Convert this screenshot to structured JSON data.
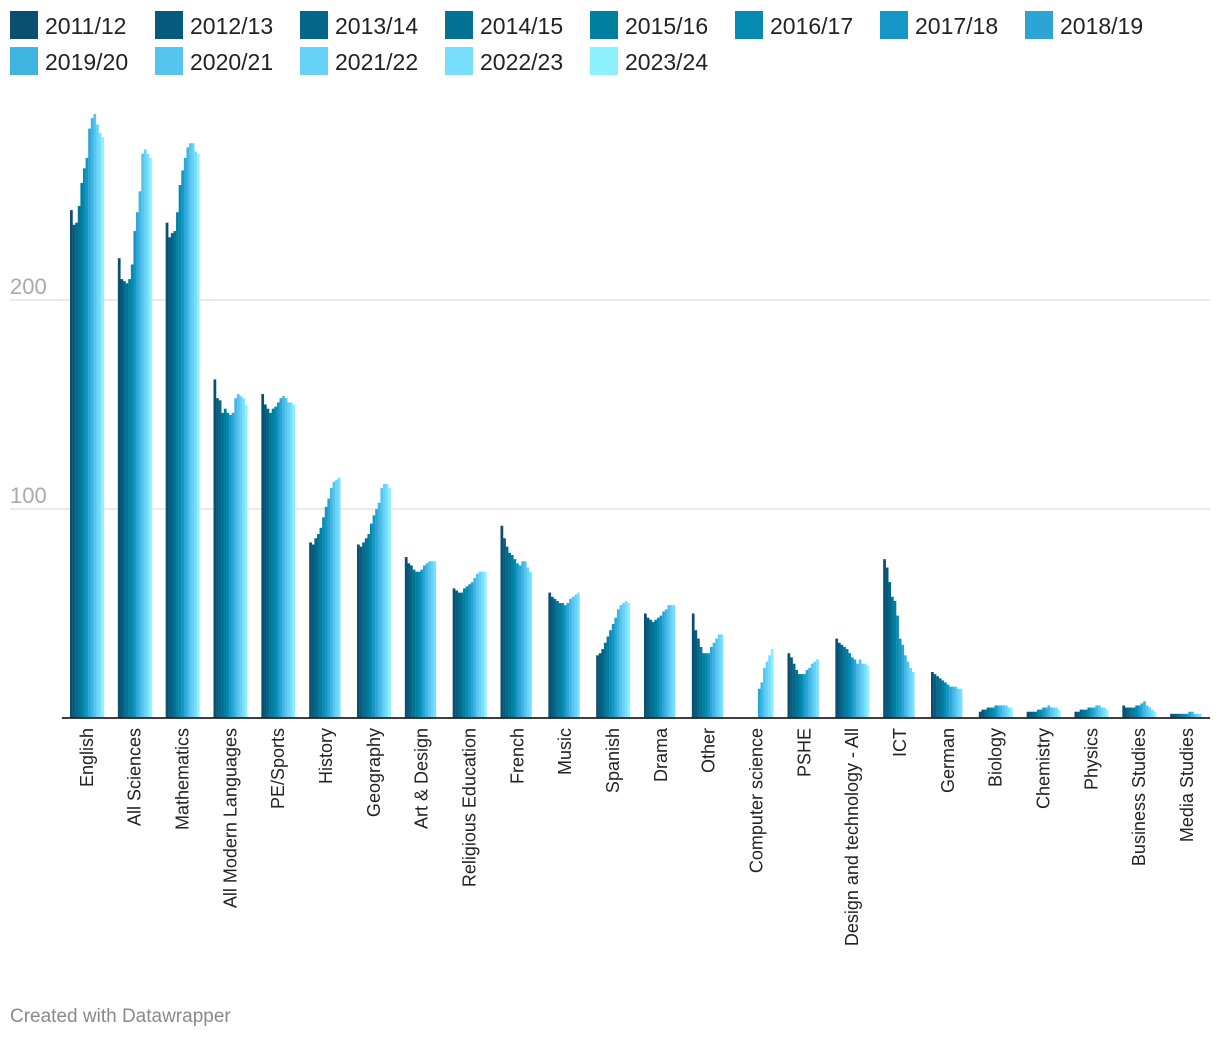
{
  "chart_data": {
    "type": "bar",
    "title": "",
    "xlabel": "",
    "ylabel": "",
    "ylim": [
      0,
      290
    ],
    "yticks": [
      100,
      200
    ],
    "grid": true,
    "legend_position": "top",
    "categories": [
      "English",
      "All Sciences",
      "Mathematics",
      "All Modern Languages",
      "PE/Sports",
      "History",
      "Geography",
      "Art & Design",
      "Religious Education",
      "French",
      "Music",
      "Spanish",
      "Drama",
      "Other",
      "Computer science",
      "PSHE",
      "Design and technology - All",
      "ICT",
      "German",
      "Biology",
      "Chemistry",
      "Physics",
      "Business Studies",
      "Media Studies"
    ],
    "series": [
      {
        "name": "2011/12",
        "color": "#0a4f70",
        "values": [
          243,
          220,
          237,
          162,
          155,
          84,
          83,
          77,
          62,
          92,
          60,
          30,
          50,
          50,
          null,
          31,
          38,
          76,
          22,
          3,
          3,
          3,
          6,
          2
        ]
      },
      {
        "name": "2012/13",
        "color": "#065a7e",
        "values": [
          236,
          210,
          230,
          153,
          150,
          83,
          82,
          74,
          61,
          86,
          58,
          31,
          48,
          42,
          null,
          29,
          36,
          72,
          21,
          4,
          3,
          3,
          5,
          2
        ]
      },
      {
        "name": "2013/14",
        "color": "#046688",
        "values": [
          237,
          209,
          232,
          152,
          148,
          86,
          84,
          73,
          60,
          82,
          57,
          33,
          47,
          38,
          null,
          26,
          35,
          65,
          20,
          4,
          3,
          4,
          5,
          2
        ]
      },
      {
        "name": "2014/15",
        "color": "#037293",
        "values": [
          245,
          208,
          233,
          146,
          146,
          88,
          86,
          71,
          60,
          79,
          56,
          36,
          46,
          34,
          null,
          23,
          34,
          58,
          19,
          5,
          3,
          4,
          5,
          2
        ]
      },
      {
        "name": "2015/16",
        "color": "#027f9e",
        "values": [
          256,
          210,
          242,
          148,
          148,
          91,
          88,
          70,
          62,
          78,
          55,
          39,
          47,
          31,
          null,
          21,
          33,
          56,
          18,
          5,
          4,
          4,
          5,
          2
        ]
      },
      {
        "name": "2016/17",
        "color": "#058ab1",
        "values": [
          263,
          217,
          255,
          146,
          149,
          96,
          93,
          70,
          63,
          76,
          55,
          42,
          48,
          31,
          null,
          21,
          31,
          49,
          17,
          5,
          4,
          5,
          6,
          2
        ]
      },
      {
        "name": "2017/18",
        "color": "#1497c4",
        "values": [
          268,
          233,
          262,
          145,
          151,
          101,
          97,
          71,
          64,
          74,
          54,
          45,
          49,
          31,
          null,
          21,
          29,
          38,
          16,
          6,
          5,
          5,
          6,
          2
        ]
      },
      {
        "name": "2018/19",
        "color": "#2ca5d4",
        "values": [
          282,
          242,
          268,
          146,
          153,
          105,
          100,
          73,
          65,
          73,
          55,
          48,
          51,
          34,
          14,
          23,
          28,
          35,
          15,
          6,
          5,
          5,
          7,
          3
        ]
      },
      {
        "name": "2019/20",
        "color": "#41b5e2",
        "values": [
          287,
          252,
          273,
          153,
          154,
          110,
          103,
          74,
          67,
          75,
          57,
          52,
          52,
          36,
          17,
          24,
          26,
          30,
          15,
          6,
          6,
          6,
          8,
          3
        ]
      },
      {
        "name": "2020/21",
        "color": "#55c4ee",
        "values": [
          289,
          270,
          275,
          155,
          153,
          113,
          110,
          75,
          69,
          75,
          58,
          54,
          54,
          38,
          24,
          26,
          28,
          27,
          15,
          6,
          5,
          6,
          6,
          2
        ]
      },
      {
        "name": "2021/22",
        "color": "#66d2f8",
        "values": [
          284,
          272,
          275,
          154,
          151,
          114,
          112,
          75,
          70,
          72,
          59,
          55,
          54,
          40,
          27,
          27,
          26,
          24,
          14,
          6,
          5,
          5,
          5,
          2
        ]
      },
      {
        "name": "2022/23",
        "color": "#77dffd",
        "values": [
          280,
          270,
          271,
          153,
          151,
          115,
          112,
          75,
          70,
          70,
          60,
          56,
          54,
          40,
          30,
          28,
          26,
          22,
          14,
          5,
          5,
          5,
          4,
          2
        ]
      },
      {
        "name": "2023/24",
        "color": "#8cf0fd",
        "values": [
          278,
          268,
          270,
          150,
          150,
          null,
          110,
          null,
          70,
          null,
          null,
          55,
          null,
          null,
          33,
          null,
          25,
          null,
          null,
          5,
          4,
          4,
          3,
          null
        ]
      }
    ]
  },
  "footer": {
    "credit": "Created with Datawrapper"
  }
}
